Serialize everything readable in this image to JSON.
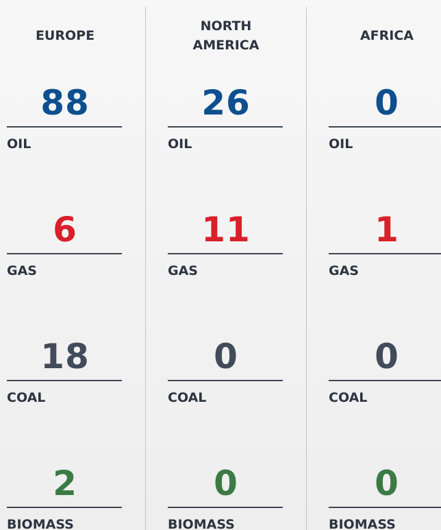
{
  "table": {
    "fuels": [
      {
        "label": "OIL",
        "color": "#0d4f8f"
      },
      {
        "label": "GAS",
        "color": "#d9202a"
      },
      {
        "label": "COAL",
        "color": "#424b5a"
      },
      {
        "label": "BIOMASS",
        "color": "#3c7a45"
      }
    ],
    "columns": [
      {
        "name": "EUROPE",
        "values": [
          88,
          6,
          18,
          2
        ]
      },
      {
        "name": "NORTH AMERICA",
        "values": [
          26,
          11,
          0,
          0
        ]
      },
      {
        "name": "AFRICA",
        "values": [
          0,
          1,
          0,
          0
        ]
      }
    ]
  }
}
